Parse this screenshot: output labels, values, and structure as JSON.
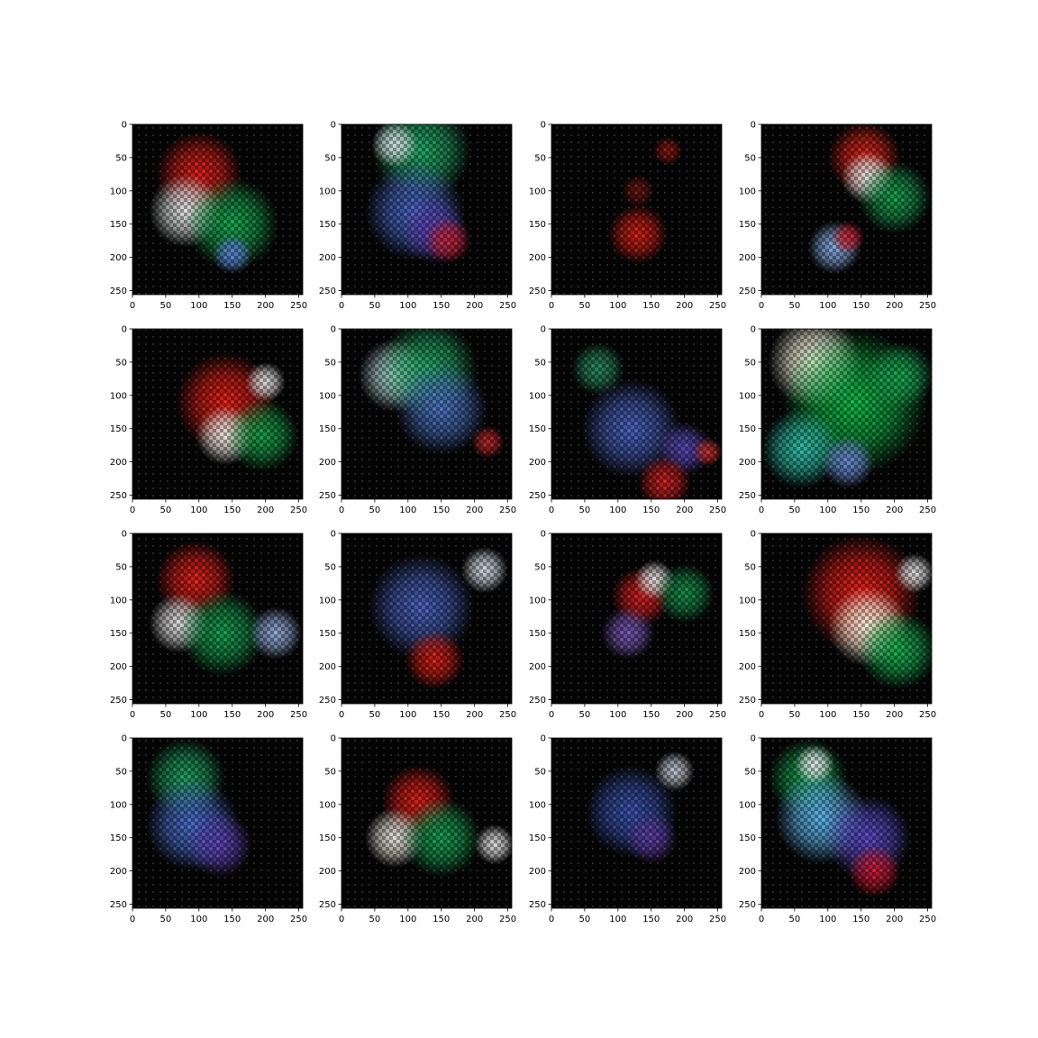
{
  "chart_data": [
    {
      "type": "heatmap",
      "panel": "r1c1",
      "xticks": [
        0,
        50,
        100,
        150,
        200,
        250
      ],
      "yticks": [
        0,
        50,
        100,
        150,
        200,
        250
      ],
      "xlim": [
        0,
        256
      ],
      "ylim": [
        256,
        0
      ],
      "blobs": [
        {
          "color": "#e0201a",
          "x": 100,
          "y": 75,
          "r": 65
        },
        {
          "color": "#e8ecec",
          "x": 80,
          "y": 130,
          "r": 55
        },
        {
          "color": "#18a850",
          "x": 150,
          "y": 150,
          "r": 70
        },
        {
          "color": "#5a7ed8",
          "x": 150,
          "y": 195,
          "r": 30
        }
      ]
    },
    {
      "type": "heatmap",
      "panel": "r1c2",
      "xticks": [
        0,
        50,
        100,
        150,
        200,
        250
      ],
      "yticks": [
        0,
        50,
        100,
        150,
        200,
        250
      ],
      "xlim": [
        0,
        256
      ],
      "ylim": [
        256,
        0
      ],
      "blobs": [
        {
          "color": "#22aa66",
          "x": 120,
          "y": 40,
          "r": 75
        },
        {
          "color": "#d8e4e8",
          "x": 80,
          "y": 30,
          "r": 35
        },
        {
          "color": "#4a68c8",
          "x": 110,
          "y": 130,
          "r": 75
        },
        {
          "color": "#5a3aa8",
          "x": 140,
          "y": 160,
          "r": 50
        },
        {
          "color": "#c02030",
          "x": 160,
          "y": 175,
          "r": 35
        }
      ]
    },
    {
      "type": "heatmap",
      "panel": "r1c3",
      "xticks": [
        0,
        50,
        100,
        150,
        200,
        250
      ],
      "yticks": [
        0,
        50,
        100,
        150,
        200,
        250
      ],
      "xlim": [
        0,
        256
      ],
      "ylim": [
        256,
        0
      ],
      "blobs": [
        {
          "color": "#d42015",
          "x": 130,
          "y": 165,
          "r": 45
        },
        {
          "color": "#8a1812",
          "x": 175,
          "y": 40,
          "r": 22
        },
        {
          "color": "#6a1810",
          "x": 130,
          "y": 100,
          "r": 25
        }
      ]
    },
    {
      "type": "heatmap",
      "panel": "r1c4",
      "xticks": [
        0,
        50,
        100,
        150,
        200,
        250
      ],
      "yticks": [
        0,
        50,
        100,
        150,
        200,
        250
      ],
      "xlim": [
        0,
        256
      ],
      "ylim": [
        256,
        0
      ],
      "blobs": [
        {
          "color": "#e0251a",
          "x": 155,
          "y": 50,
          "r": 55
        },
        {
          "color": "#e8eeee",
          "x": 160,
          "y": 80,
          "r": 40
        },
        {
          "color": "#1aa050",
          "x": 200,
          "y": 110,
          "r": 55
        },
        {
          "color": "#8ab0e8",
          "x": 110,
          "y": 185,
          "r": 40
        },
        {
          "color": "#c82030",
          "x": 130,
          "y": 170,
          "r": 25
        }
      ]
    },
    {
      "type": "heatmap",
      "panel": "r2c1",
      "xticks": [
        0,
        50,
        100,
        150,
        200,
        250
      ],
      "yticks": [
        0,
        50,
        100,
        150,
        200,
        250
      ],
      "xlim": [
        0,
        256
      ],
      "ylim": [
        256,
        0
      ],
      "blobs": [
        {
          "color": "#e8201a",
          "x": 140,
          "y": 110,
          "r": 75
        },
        {
          "color": "#f0f0e8",
          "x": 140,
          "y": 160,
          "r": 45
        },
        {
          "color": "#18a048",
          "x": 195,
          "y": 160,
          "r": 55
        },
        {
          "color": "#e8e8e8",
          "x": 200,
          "y": 80,
          "r": 30
        }
      ]
    },
    {
      "type": "heatmap",
      "panel": "r2c2",
      "xticks": [
        0,
        50,
        100,
        150,
        200,
        250
      ],
      "yticks": [
        0,
        50,
        100,
        150,
        200,
        250
      ],
      "xlim": [
        0,
        256
      ],
      "ylim": [
        256,
        0
      ],
      "blobs": [
        {
          "color": "#b8d8dc",
          "x": 80,
          "y": 70,
          "r": 55
        },
        {
          "color": "#22a865",
          "x": 130,
          "y": 60,
          "r": 75
        },
        {
          "color": "#4a70c0",
          "x": 150,
          "y": 120,
          "r": 70
        },
        {
          "color": "#c02828",
          "x": 220,
          "y": 170,
          "r": 25
        }
      ]
    },
    {
      "type": "heatmap",
      "panel": "r2c3",
      "xticks": [
        0,
        50,
        100,
        150,
        200,
        250
      ],
      "yticks": [
        0,
        50,
        100,
        150,
        200,
        250
      ],
      "xlim": [
        0,
        256
      ],
      "ylim": [
        256,
        0
      ],
      "blobs": [
        {
          "color": "#2a8a60",
          "x": 70,
          "y": 60,
          "r": 40
        },
        {
          "color": "#4a62c0",
          "x": 120,
          "y": 150,
          "r": 75
        },
        {
          "color": "#5a48b8",
          "x": 200,
          "y": 180,
          "r": 40
        },
        {
          "color": "#d02020",
          "x": 170,
          "y": 230,
          "r": 40
        },
        {
          "color": "#c83030",
          "x": 235,
          "y": 185,
          "r": 22
        }
      ]
    },
    {
      "type": "heatmap",
      "panel": "r2c4",
      "xticks": [
        0,
        50,
        100,
        150,
        200,
        250
      ],
      "yticks": [
        0,
        50,
        100,
        150,
        200,
        250
      ],
      "xlim": [
        0,
        256
      ],
      "ylim": [
        256,
        0
      ],
      "blobs": [
        {
          "color": "#ffffe8",
          "x": 80,
          "y": 50,
          "r": 70
        },
        {
          "color": "#10b848",
          "x": 140,
          "y": 110,
          "r": 110
        },
        {
          "color": "#30c0a8",
          "x": 60,
          "y": 180,
          "r": 60
        },
        {
          "color": "#6a8ad8",
          "x": 130,
          "y": 200,
          "r": 40
        },
        {
          "color": "#18a050",
          "x": 210,
          "y": 70,
          "r": 50
        }
      ]
    },
    {
      "type": "heatmap",
      "panel": "r3c1",
      "xticks": [
        0,
        50,
        100,
        150,
        200,
        250
      ],
      "yticks": [
        0,
        50,
        100,
        150,
        200,
        250
      ],
      "xlim": [
        0,
        256
      ],
      "ylim": [
        256,
        0
      ],
      "blobs": [
        {
          "color": "#e0201a",
          "x": 95,
          "y": 70,
          "r": 60
        },
        {
          "color": "#e8e8e8",
          "x": 70,
          "y": 135,
          "r": 45
        },
        {
          "color": "#18a050",
          "x": 135,
          "y": 150,
          "r": 65
        },
        {
          "color": "#98b0e0",
          "x": 215,
          "y": 150,
          "r": 40
        }
      ]
    },
    {
      "type": "heatmap",
      "panel": "r3c2",
      "xticks": [
        0,
        50,
        100,
        150,
        200,
        250
      ],
      "yticks": [
        0,
        50,
        100,
        150,
        200,
        250
      ],
      "xlim": [
        0,
        256
      ],
      "ylim": [
        256,
        0
      ],
      "blobs": [
        {
          "color": "#4a62c0",
          "x": 120,
          "y": 110,
          "r": 80
        },
        {
          "color": "#d8e4ee",
          "x": 215,
          "y": 55,
          "r": 35
        },
        {
          "color": "#d82015",
          "x": 140,
          "y": 190,
          "r": 45
        }
      ]
    },
    {
      "type": "heatmap",
      "panel": "r3c3",
      "xticks": [
        0,
        50,
        100,
        150,
        200,
        250
      ],
      "yticks": [
        0,
        50,
        100,
        150,
        200,
        250
      ],
      "xlim": [
        0,
        256
      ],
      "ylim": [
        256,
        0
      ],
      "blobs": [
        {
          "color": "#d82020",
          "x": 135,
          "y": 95,
          "r": 45
        },
        {
          "color": "#e8e8e8",
          "x": 155,
          "y": 70,
          "r": 30
        },
        {
          "color": "#7a5ab8",
          "x": 115,
          "y": 150,
          "r": 40
        },
        {
          "color": "#18904a",
          "x": 200,
          "y": 90,
          "r": 45
        }
      ]
    },
    {
      "type": "heatmap",
      "panel": "r3c4",
      "xticks": [
        0,
        50,
        100,
        150,
        200,
        250
      ],
      "yticks": [
        0,
        50,
        100,
        150,
        200,
        250
      ],
      "xlim": [
        0,
        256
      ],
      "ylim": [
        256,
        0
      ],
      "blobs": [
        {
          "color": "#f0201a",
          "x": 150,
          "y": 90,
          "r": 90
        },
        {
          "color": "#fff8e0",
          "x": 160,
          "y": 140,
          "r": 60
        },
        {
          "color": "#18b050",
          "x": 205,
          "y": 175,
          "r": 60
        },
        {
          "color": "#e8e8e8",
          "x": 230,
          "y": 60,
          "r": 30
        }
      ]
    },
    {
      "type": "heatmap",
      "panel": "r4c1",
      "xticks": [
        0,
        50,
        100,
        150,
        200,
        250
      ],
      "yticks": [
        0,
        50,
        100,
        150,
        200,
        250
      ],
      "xlim": [
        0,
        256
      ],
      "ylim": [
        256,
        0
      ],
      "blobs": [
        {
          "color": "#20a060",
          "x": 80,
          "y": 60,
          "r": 60
        },
        {
          "color": "#4a70d0",
          "x": 90,
          "y": 130,
          "r": 70
        },
        {
          "color": "#5a40b0",
          "x": 130,
          "y": 160,
          "r": 50
        }
      ]
    },
    {
      "type": "heatmap",
      "panel": "r4c2",
      "xticks": [
        0,
        50,
        100,
        150,
        200,
        250
      ],
      "yticks": [
        0,
        50,
        100,
        150,
        200,
        250
      ],
      "xlim": [
        0,
        256
      ],
      "ylim": [
        256,
        0
      ],
      "blobs": [
        {
          "color": "#e0201a",
          "x": 115,
          "y": 95,
          "r": 55
        },
        {
          "color": "#f0ece0",
          "x": 80,
          "y": 150,
          "r": 45
        },
        {
          "color": "#18a050",
          "x": 150,
          "y": 150,
          "r": 60
        },
        {
          "color": "#e8e8e8",
          "x": 230,
          "y": 160,
          "r": 30
        }
      ]
    },
    {
      "type": "heatmap",
      "panel": "r4c3",
      "xticks": [
        0,
        50,
        100,
        150,
        200,
        250
      ],
      "yticks": [
        0,
        50,
        100,
        150,
        200,
        250
      ],
      "xlim": [
        0,
        256
      ],
      "ylim": [
        256,
        0
      ],
      "blobs": [
        {
          "color": "#3a52b0",
          "x": 120,
          "y": 110,
          "r": 70
        },
        {
          "color": "#c8d0dc",
          "x": 185,
          "y": 50,
          "r": 30
        },
        {
          "color": "#5a3aa0",
          "x": 150,
          "y": 150,
          "r": 40
        }
      ]
    },
    {
      "type": "heatmap",
      "panel": "r4c4",
      "xticks": [
        0,
        50,
        100,
        150,
        200,
        250
      ],
      "yticks": [
        0,
        50,
        100,
        150,
        200,
        250
      ],
      "xlim": [
        0,
        256
      ],
      "ylim": [
        256,
        0
      ],
      "blobs": [
        {
          "color": "#18a050",
          "x": 70,
          "y": 60,
          "r": 60
        },
        {
          "color": "#60b8f0",
          "x": 90,
          "y": 120,
          "r": 70
        },
        {
          "color": "#5a4ac8",
          "x": 160,
          "y": 150,
          "r": 65
        },
        {
          "color": "#c81830",
          "x": 170,
          "y": 200,
          "r": 40
        },
        {
          "color": "#e8eef0",
          "x": 80,
          "y": 40,
          "r": 30
        }
      ]
    }
  ]
}
